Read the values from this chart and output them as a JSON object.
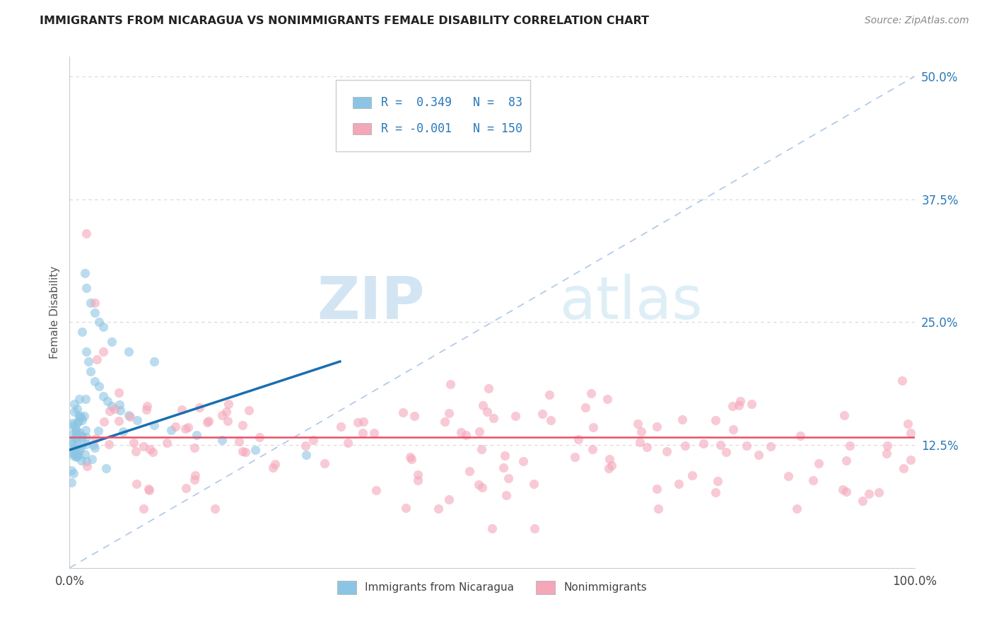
{
  "title": "IMMIGRANTS FROM NICARAGUA VS NONIMMIGRANTS FEMALE DISABILITY CORRELATION CHART",
  "source": "Source: ZipAtlas.com",
  "ylabel": "Female Disability",
  "r_nicaragua": 0.349,
  "n_nicaragua": 83,
  "r_nonimmigrant": -0.001,
  "n_nonimmigrant": 150,
  "color_nicaragua": "#8cc5e3",
  "color_nonimmigrant": "#f4a7b9",
  "line_color_nicaragua": "#1a6faf",
  "line_color_nonimmigrant": "#e8506a",
  "diagonal_color": "#aec7e8",
  "background_color": "#ffffff",
  "xlim": [
    0,
    1
  ],
  "ylim": [
    0.0,
    0.52
  ],
  "ytick_vals": [
    0.0,
    0.125,
    0.25,
    0.375,
    0.5
  ],
  "ytick_labels": [
    "",
    "12.5%",
    "25.0%",
    "37.5%",
    "50.0%"
  ],
  "watermark_zip": "ZIP",
  "watermark_atlas": "atlas",
  "legend_r1": "R =  0.349   N =  83",
  "legend_r2": "R = -0.001   N = 150",
  "label_nicaragua": "Immigrants from Nicaragua",
  "label_nonimmigrant": "Nonimmigrants"
}
